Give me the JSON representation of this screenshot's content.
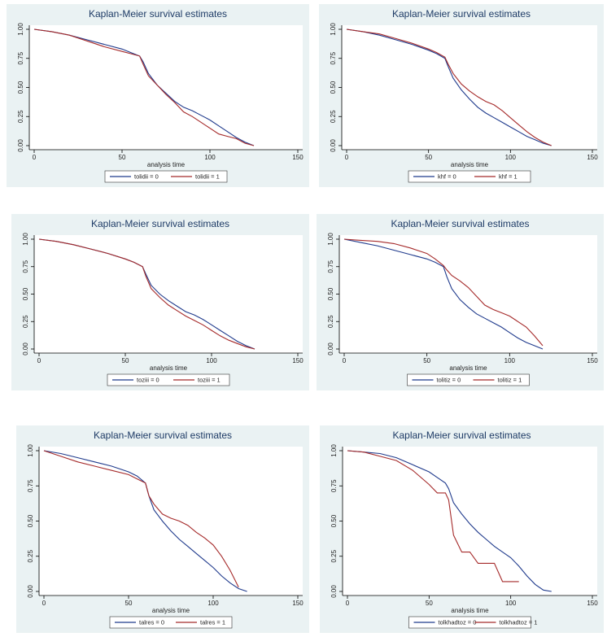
{
  "chart_data": [
    {
      "type": "line",
      "title": "Kaplan-Meier survival estimates",
      "x_label": "analysis time",
      "x": [
        0,
        10,
        20,
        30,
        40,
        50,
        55,
        60,
        62,
        65,
        70,
        75,
        80,
        85,
        90,
        95,
        100,
        105,
        110,
        115,
        120,
        125
      ],
      "xlim": [
        0,
        150
      ],
      "xticks": [
        0,
        50,
        100,
        150
      ],
      "ylim": [
        0,
        1
      ],
      "yticks": [
        {
          "value": 0,
          "label": "0.00"
        },
        {
          "value": 0.25,
          "label": "0.25"
        },
        {
          "value": 0.5,
          "label": "0.50"
        },
        {
          "value": 0.75,
          "label": "0.75"
        },
        {
          "value": 1,
          "label": "1.00"
        }
      ],
      "series": [
        {
          "name": "tolidii = 0",
          "color": "#1f3a8c",
          "values": [
            1,
            0.98,
            0.95,
            0.91,
            0.87,
            0.83,
            0.8,
            0.77,
            0.72,
            0.62,
            0.52,
            0.45,
            0.38,
            0.33,
            0.3,
            0.26,
            0.22,
            0.17,
            0.12,
            0.07,
            0.03,
            0.0
          ]
        },
        {
          "name": "tolidii = 1",
          "color": "#a52a2a",
          "values": [
            1,
            0.98,
            0.95,
            0.9,
            0.85,
            0.81,
            0.79,
            0.77,
            0.7,
            0.6,
            0.52,
            0.44,
            0.37,
            0.29,
            0.25,
            0.2,
            0.15,
            0.1,
            0.08,
            0.06,
            0.02,
            0.0
          ]
        }
      ]
    },
    {
      "type": "line",
      "title": "Kaplan-Meier survival estimates",
      "x_label": "analysis time",
      "x": [
        0,
        10,
        20,
        30,
        40,
        50,
        55,
        60,
        62,
        65,
        70,
        75,
        80,
        85,
        90,
        95,
        100,
        105,
        110,
        115,
        120,
        125
      ],
      "xlim": [
        0,
        150
      ],
      "xticks": [
        0,
        50,
        100,
        150
      ],
      "ylim": [
        0,
        1
      ],
      "yticks": [
        {
          "value": 0,
          "label": "0.00"
        },
        {
          "value": 0.25,
          "label": "0.25"
        },
        {
          "value": 0.5,
          "label": "0.50"
        },
        {
          "value": 0.75,
          "label": "0.75"
        },
        {
          "value": 1,
          "label": "1.00"
        }
      ],
      "series": [
        {
          "name": "khf = 0",
          "color": "#1f3a8c",
          "values": [
            1,
            0.98,
            0.95,
            0.91,
            0.87,
            0.82,
            0.79,
            0.75,
            0.68,
            0.58,
            0.48,
            0.4,
            0.33,
            0.28,
            0.24,
            0.2,
            0.16,
            0.12,
            0.08,
            0.05,
            0.02,
            0.0
          ]
        },
        {
          "name": "khf = 1",
          "color": "#a52a2a",
          "values": [
            1,
            0.98,
            0.96,
            0.92,
            0.88,
            0.83,
            0.8,
            0.76,
            0.7,
            0.62,
            0.53,
            0.47,
            0.42,
            0.38,
            0.35,
            0.3,
            0.24,
            0.18,
            0.12,
            0.07,
            0.03,
            0.0
          ]
        }
      ]
    },
    {
      "type": "line",
      "title": "Kaplan-Meier survival estimates",
      "x_label": "analysis time",
      "x": [
        0,
        10,
        20,
        30,
        40,
        50,
        55,
        60,
        62,
        65,
        70,
        75,
        80,
        85,
        90,
        95,
        100,
        105,
        110,
        115,
        120,
        125
      ],
      "xlim": [
        0,
        150
      ],
      "xticks": [
        0,
        50,
        100,
        150
      ],
      "ylim": [
        0,
        1
      ],
      "yticks": [
        {
          "value": 0,
          "label": "0.00"
        },
        {
          "value": 0.25,
          "label": "0.25"
        },
        {
          "value": 0.5,
          "label": "0.50"
        },
        {
          "value": 0.75,
          "label": "0.75"
        },
        {
          "value": 1,
          "label": "1.00"
        }
      ],
      "series": [
        {
          "name": "toziii = 0",
          "color": "#1f3a8c",
          "values": [
            1,
            0.98,
            0.95,
            0.91,
            0.87,
            0.82,
            0.79,
            0.75,
            0.68,
            0.58,
            0.5,
            0.44,
            0.39,
            0.34,
            0.31,
            0.27,
            0.22,
            0.17,
            0.12,
            0.07,
            0.03,
            0.0
          ]
        },
        {
          "name": "toziii = 1",
          "color": "#a52a2a",
          "values": [
            1,
            0.98,
            0.95,
            0.91,
            0.87,
            0.82,
            0.79,
            0.75,
            0.66,
            0.55,
            0.47,
            0.4,
            0.35,
            0.3,
            0.26,
            0.22,
            0.17,
            0.12,
            0.08,
            0.05,
            0.02,
            0.0
          ]
        }
      ]
    },
    {
      "type": "line",
      "title": "Kaplan-Meier survival estimates",
      "x_label": "analysis time",
      "x": [
        0,
        10,
        20,
        30,
        40,
        50,
        55,
        60,
        62,
        65,
        70,
        75,
        80,
        85,
        90,
        95,
        100,
        105,
        110,
        115,
        120,
        125
      ],
      "xlim": [
        0,
        150
      ],
      "xticks": [
        0,
        50,
        100,
        150
      ],
      "ylim": [
        0,
        1
      ],
      "yticks": [
        {
          "value": 0,
          "label": "0.00"
        },
        {
          "value": 0.25,
          "label": "0.25"
        },
        {
          "value": 0.5,
          "label": "0.50"
        },
        {
          "value": 0.75,
          "label": "0.75"
        },
        {
          "value": 1,
          "label": "1.00"
        }
      ],
      "series": [
        {
          "name": "tolitiz = 0",
          "color": "#1f3a8c",
          "values": [
            1,
            0.97,
            0.94,
            0.9,
            0.86,
            0.82,
            0.79,
            0.75,
            0.66,
            0.55,
            0.45,
            0.38,
            0.32,
            0.28,
            0.24,
            0.2,
            0.15,
            0.1,
            0.06,
            0.03,
            0.0,
            null
          ]
        },
        {
          "name": "tolitiz = 1",
          "color": "#a52a2a",
          "values": [
            1,
            0.99,
            0.98,
            0.96,
            0.92,
            0.87,
            0.82,
            0.76,
            0.72,
            0.67,
            0.62,
            0.56,
            0.48,
            0.4,
            0.36,
            0.33,
            0.3,
            0.25,
            0.2,
            0.12,
            0.03,
            null
          ]
        }
      ]
    },
    {
      "type": "line",
      "title": "Kaplan-Meier survival estimates",
      "x_label": "analysis time",
      "x": [
        0,
        10,
        20,
        30,
        40,
        50,
        55,
        60,
        62,
        65,
        70,
        75,
        80,
        85,
        90,
        95,
        100,
        105,
        110,
        115,
        120,
        125
      ],
      "xlim": [
        0,
        150
      ],
      "xticks": [
        0,
        50,
        100,
        150
      ],
      "ylim": [
        0,
        1
      ],
      "yticks": [
        {
          "value": 0,
          "label": "0.00"
        },
        {
          "value": 0.25,
          "label": "0.25"
        },
        {
          "value": 0.5,
          "label": "0.50"
        },
        {
          "value": 0.75,
          "label": "0.75"
        },
        {
          "value": 1,
          "label": "1.00"
        }
      ],
      "series": [
        {
          "name": "talres = 0",
          "color": "#1f3a8c",
          "values": [
            1,
            0.98,
            0.95,
            0.92,
            0.89,
            0.85,
            0.82,
            0.77,
            0.68,
            0.58,
            0.5,
            0.43,
            0.37,
            0.32,
            0.27,
            0.22,
            0.17,
            0.11,
            0.06,
            0.02,
            0.0,
            null
          ]
        },
        {
          "name": "talres = 1",
          "color": "#a52a2a",
          "values": [
            1,
            0.96,
            0.92,
            0.89,
            0.86,
            0.83,
            0.8,
            0.77,
            0.68,
            0.62,
            0.55,
            0.52,
            0.5,
            0.47,
            0.42,
            0.38,
            0.33,
            0.25,
            0.15,
            0.03,
            null,
            null
          ]
        }
      ]
    },
    {
      "type": "line",
      "title": "Kaplan-Meier survival estimates",
      "x_label": "analysis time",
      "x": [
        0,
        10,
        20,
        30,
        40,
        50,
        55,
        60,
        62,
        65,
        70,
        75,
        80,
        85,
        90,
        95,
        100,
        105,
        110,
        115,
        120,
        125
      ],
      "xlim": [
        0,
        150
      ],
      "xticks": [
        0,
        50,
        100,
        150
      ],
      "ylim": [
        0,
        1
      ],
      "yticks": [
        {
          "value": 0,
          "label": "0.00"
        },
        {
          "value": 0.25,
          "label": "0.25"
        },
        {
          "value": 0.5,
          "label": "0.50"
        },
        {
          "value": 0.75,
          "label": "0.75"
        },
        {
          "value": 1,
          "label": "1.00"
        }
      ],
      "series": [
        {
          "name": "tolkhadtoz = 0",
          "color": "#1f3a8c",
          "values": [
            1,
            0.99,
            0.98,
            0.95,
            0.9,
            0.85,
            0.81,
            0.77,
            0.73,
            0.63,
            0.55,
            0.48,
            0.42,
            0.37,
            0.32,
            0.28,
            0.24,
            0.18,
            0.11,
            0.05,
            0.01,
            0.0
          ]
        },
        {
          "name": "tolkhadtoz = 1",
          "color": "#a52a2a",
          "values": [
            1,
            0.99,
            0.96,
            0.93,
            0.86,
            0.76,
            0.7,
            0.7,
            0.65,
            0.4,
            0.28,
            0.28,
            0.2,
            0.2,
            0.2,
            0.07,
            0.07,
            0.07,
            null,
            null,
            null,
            null
          ]
        }
      ]
    }
  ]
}
